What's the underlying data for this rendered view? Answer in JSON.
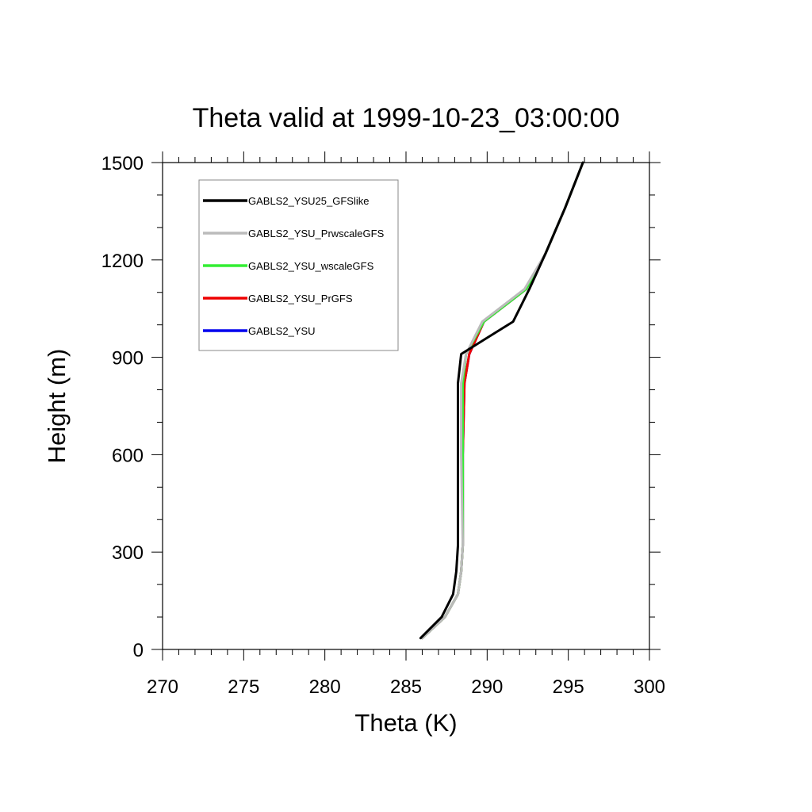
{
  "chart_data": {
    "type": "line",
    "title": "Theta valid at 1999-10-23_03:00:00",
    "xlabel": "Theta (K)",
    "ylabel": "Height (m)",
    "xlim": [
      270,
      300
    ],
    "ylim": [
      0,
      1500
    ],
    "x_ticks": [
      "270",
      "275",
      "280",
      "285",
      "290",
      "295",
      "300"
    ],
    "y_ticks": [
      "0",
      "300",
      "600",
      "900",
      "1200",
      "1500"
    ],
    "grid": false,
    "legend_position": "top-left",
    "series": [
      {
        "name": "GABLS2_YSU25_GFSlike",
        "color": "#000000",
        "points": [
          [
            285.9,
            35
          ],
          [
            287.2,
            100
          ],
          [
            287.9,
            170
          ],
          [
            288.1,
            240
          ],
          [
            288.2,
            320
          ],
          [
            288.2,
            600
          ],
          [
            288.2,
            820
          ],
          [
            288.4,
            910
          ],
          [
            290.0,
            960
          ],
          [
            291.6,
            1010
          ],
          [
            292.6,
            1110
          ],
          [
            293.6,
            1220
          ],
          [
            294.8,
            1360
          ],
          [
            295.9,
            1500
          ]
        ]
      },
      {
        "name": "GABLS2_YSU_PrwscaleGFS",
        "color": "#bbbbbb",
        "points": [
          [
            286.0,
            35
          ],
          [
            287.4,
            100
          ],
          [
            288.2,
            170
          ],
          [
            288.4,
            240
          ],
          [
            288.5,
            320
          ],
          [
            288.4,
            600
          ],
          [
            288.4,
            820
          ],
          [
            288.7,
            910
          ],
          [
            289.7,
            1010
          ],
          [
            292.3,
            1110
          ],
          [
            293.6,
            1220
          ],
          [
            294.8,
            1360
          ],
          [
            295.9,
            1500
          ]
        ]
      },
      {
        "name": "GABLS2_YSU_wscaleGFS",
        "color": "#33ee33",
        "points": [
          [
            286.0,
            35
          ],
          [
            287.4,
            100
          ],
          [
            288.2,
            170
          ],
          [
            288.4,
            240
          ],
          [
            288.5,
            320
          ],
          [
            288.5,
            600
          ],
          [
            288.5,
            820
          ],
          [
            288.7,
            910
          ],
          [
            289.8,
            1010
          ],
          [
            292.4,
            1110
          ],
          [
            293.6,
            1220
          ],
          [
            294.8,
            1360
          ],
          [
            295.9,
            1500
          ]
        ]
      },
      {
        "name": "GABLS2_YSU_PrGFS",
        "color": "#ee0000",
        "points": [
          [
            286.0,
            35
          ],
          [
            287.4,
            100
          ],
          [
            288.2,
            170
          ],
          [
            288.4,
            240
          ],
          [
            288.5,
            320
          ],
          [
            288.5,
            600
          ],
          [
            288.6,
            820
          ],
          [
            288.9,
            910
          ],
          [
            289.8,
            1010
          ],
          [
            292.4,
            1110
          ],
          [
            293.6,
            1220
          ],
          [
            294.8,
            1360
          ],
          [
            295.9,
            1500
          ]
        ]
      },
      {
        "name": "GABLS2_YSU",
        "color": "#0000ee",
        "points": [
          [
            286.0,
            35
          ],
          [
            287.4,
            100
          ],
          [
            288.2,
            170
          ],
          [
            288.4,
            240
          ],
          [
            288.5,
            320
          ],
          [
            288.5,
            600
          ],
          [
            288.6,
            820
          ],
          [
            288.9,
            910
          ],
          [
            289.8,
            1010
          ],
          [
            292.4,
            1110
          ],
          [
            293.6,
            1220
          ],
          [
            294.8,
            1360
          ],
          [
            295.9,
            1500
          ]
        ]
      }
    ]
  }
}
